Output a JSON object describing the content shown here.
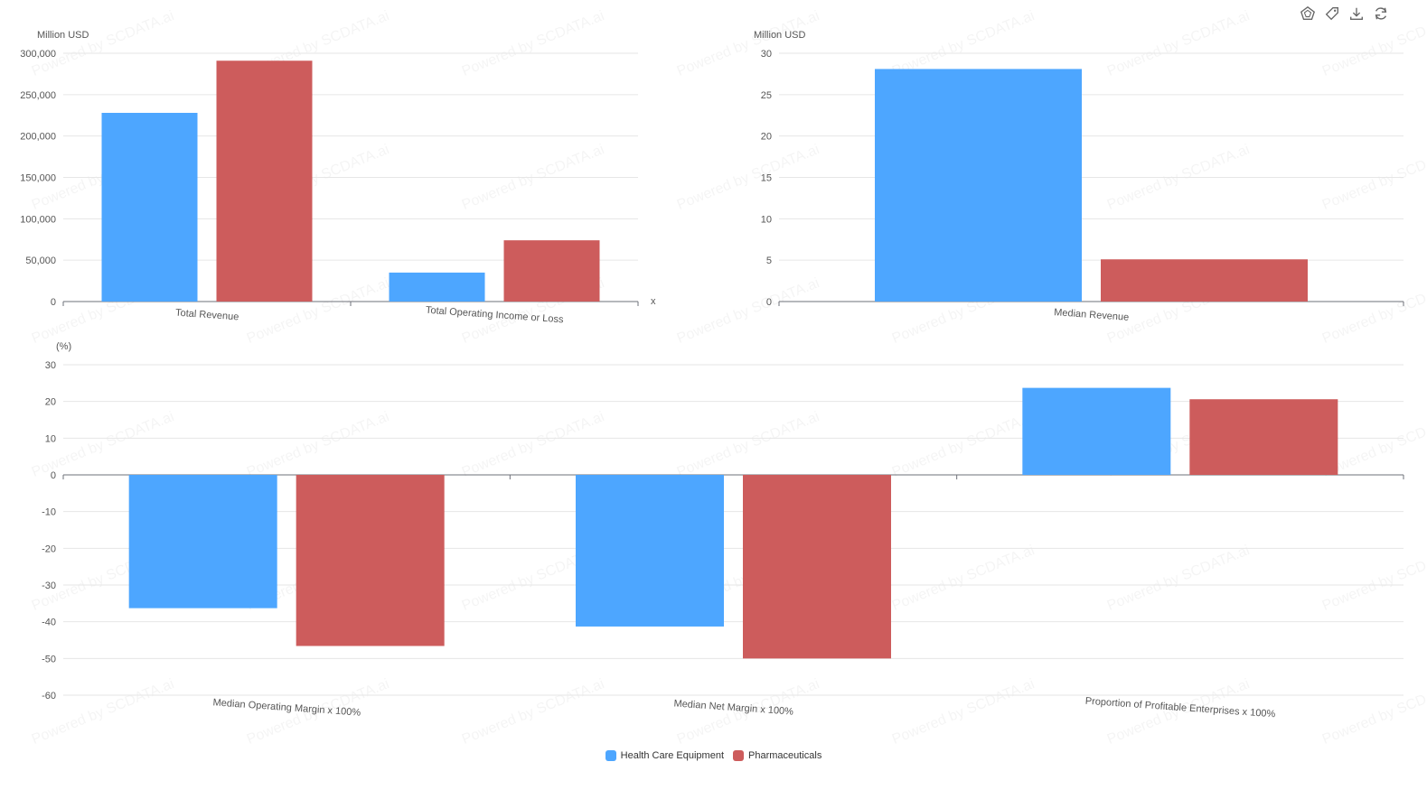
{
  "watermark": "Powered by SCDATA.ai",
  "toolbar": {
    "icons": [
      "data-view-icon",
      "magic-type-icon",
      "download-icon",
      "restore-icon"
    ]
  },
  "legend": {
    "items": [
      {
        "name": "Health Care Equipment",
        "color": "#4DA6FF"
      },
      {
        "name": "Pharmaceuticals",
        "color": "#CD5C5C"
      }
    ]
  },
  "chart_data": [
    {
      "type": "bar",
      "ylabel": "Million USD",
      "xlabel": "x",
      "categories": [
        "Total Revenue",
        "Total Operating Income or Loss"
      ],
      "yticks": [
        "0",
        "50,000",
        "100,000",
        "150,000",
        "200,000",
        "250,000",
        "300,000"
      ],
      "ylim": [
        0,
        300000
      ],
      "series": [
        {
          "name": "Health Care Equipment",
          "values": [
            228000,
            35000
          ]
        },
        {
          "name": "Pharmaceuticals",
          "values": [
            291000,
            74000
          ]
        }
      ]
    },
    {
      "type": "bar",
      "ylabel": "Million USD",
      "categories": [
        "Median Revenue"
      ],
      "yticks": [
        "0",
        "5",
        "10",
        "15",
        "20",
        "25",
        "30"
      ],
      "ylim": [
        0,
        30
      ],
      "series": [
        {
          "name": "Health Care Equipment",
          "values": [
            28.1
          ]
        },
        {
          "name": "Pharmaceuticals",
          "values": [
            5.1
          ]
        }
      ]
    },
    {
      "type": "bar",
      "ylabel": "(%)",
      "categories": [
        "Median Operating Margin x 100%",
        "Median Net Margin x 100%",
        "Proportion of Profitable Enterprises x 100%"
      ],
      "yticks": [
        "-60",
        "-50",
        "-40",
        "-30",
        "-20",
        "-10",
        "0",
        "10",
        "20",
        "30"
      ],
      "ylim": [
        -60,
        30
      ],
      "series": [
        {
          "name": "Health Care Equipment",
          "values": [
            -36.3,
            -41.3,
            23.7
          ]
        },
        {
          "name": "Pharmaceuticals",
          "values": [
            -46.6,
            -50.0,
            20.6
          ]
        }
      ]
    }
  ]
}
